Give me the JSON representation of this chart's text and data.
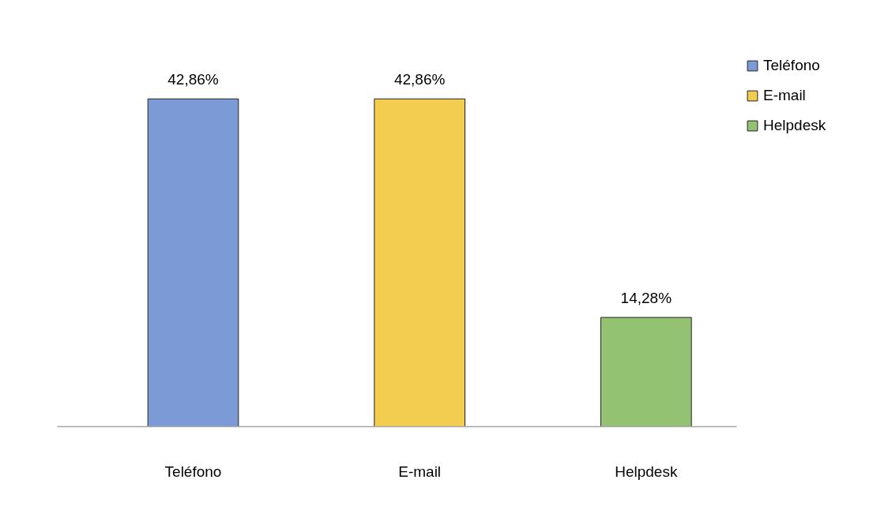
{
  "chart_data": {
    "type": "bar",
    "categories": [
      "Teléfono",
      "E-mail",
      "Helpdesk"
    ],
    "series": [
      {
        "name": "Teléfono",
        "color": "#7c9bd6",
        "values": [
          42.86,
          null,
          null
        ],
        "value_labels": [
          "42,86%",
          null,
          null
        ]
      },
      {
        "name": "E-mail",
        "color": "#f2cd50",
        "values": [
          null,
          42.86,
          null
        ],
        "value_labels": [
          null,
          "42,86%",
          null
        ]
      },
      {
        "name": "Helpdesk",
        "color": "#94c273",
        "values": [
          null,
          null,
          14.28
        ],
        "value_labels": [
          null,
          null,
          "14,28%"
        ]
      }
    ],
    "stacked": true,
    "legend": "right",
    "tick_labels": "x"
  }
}
